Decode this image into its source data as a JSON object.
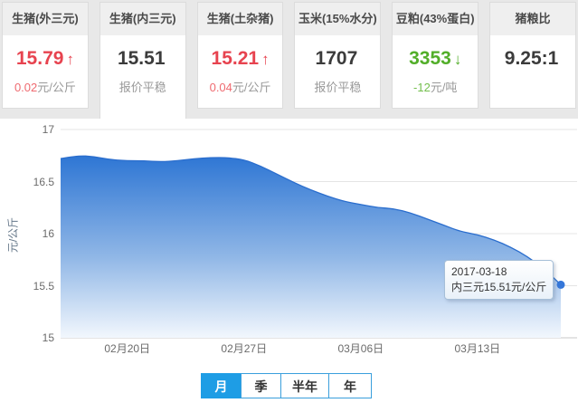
{
  "cards": [
    {
      "title": "生猪(外三元)",
      "value": "15.79",
      "trend": "up",
      "delta": "0.02",
      "unit": "元/公斤",
      "selected": false
    },
    {
      "title": "生猪(内三元)",
      "value": "15.51",
      "trend": "none",
      "delta": "",
      "unit": "报价平稳",
      "selected": true
    },
    {
      "title": "生猪(土杂猪)",
      "value": "15.21",
      "trend": "up",
      "delta": "0.04",
      "unit": "元/公斤",
      "selected": false
    },
    {
      "title": "玉米(15%水分)",
      "value": "1707",
      "trend": "none",
      "delta": "",
      "unit": "报价平稳",
      "selected": false
    },
    {
      "title": "豆粕(43%蛋白)",
      "value": "3353",
      "trend": "down",
      "delta": "-12",
      "unit": "元/吨",
      "selected": false
    },
    {
      "title": "猪粮比",
      "value": "9.25:1",
      "trend": "none",
      "delta": "",
      "unit": "",
      "selected": false
    }
  ],
  "tooltip": {
    "date": "2017-03-18",
    "text": "内三元15.51元/公斤"
  },
  "range_tabs": [
    {
      "label": "月",
      "active": true
    },
    {
      "label": "季",
      "active": false
    },
    {
      "label": "半年",
      "active": false
    },
    {
      "label": "年",
      "active": false
    }
  ],
  "colors": {
    "rise": "#e7434f",
    "fall": "#52ae29",
    "neutral_value": "#3b3b3b",
    "accent_blue": "#1e9de5",
    "chart_top": "#2e76d4",
    "chart_bottom": "#f2f7fd",
    "chart_line": "#2a6dcd",
    "marker": "#3577d9"
  },
  "chart_data": {
    "type": "area",
    "title": "",
    "xlabel": "",
    "ylabel": "元/公斤",
    "ylim": [
      15,
      17
    ],
    "yticks": [
      17,
      16.5,
      16,
      15.5,
      15
    ],
    "grid": true,
    "legend_position": "none",
    "x_tick_labels": [
      "02月20日",
      "02月27日",
      "03月06日",
      "03月13日"
    ],
    "x_tick_indices": [
      4,
      11,
      18,
      25
    ],
    "dates": [
      "02-16",
      "02-17",
      "02-18",
      "02-19",
      "02-20",
      "02-21",
      "02-22",
      "02-23",
      "02-24",
      "02-25",
      "02-26",
      "02-27",
      "02-28",
      "03-01",
      "03-02",
      "03-03",
      "03-04",
      "03-05",
      "03-06",
      "03-07",
      "03-08",
      "03-09",
      "03-10",
      "03-11",
      "03-12",
      "03-13",
      "03-14",
      "03-15",
      "03-16",
      "03-17",
      "03-18"
    ],
    "series": [
      {
        "name": "内三元",
        "values": [
          16.72,
          16.75,
          16.74,
          16.71,
          16.7,
          16.7,
          16.69,
          16.7,
          16.72,
          16.73,
          16.73,
          16.71,
          16.65,
          16.57,
          16.49,
          16.42,
          16.36,
          16.31,
          16.28,
          16.25,
          16.24,
          16.2,
          16.14,
          16.08,
          16.02,
          15.99,
          15.94,
          15.87,
          15.78,
          15.66,
          15.51
        ]
      }
    ],
    "last_point": {
      "date": "2017-03-18",
      "value": 15.51
    }
  }
}
